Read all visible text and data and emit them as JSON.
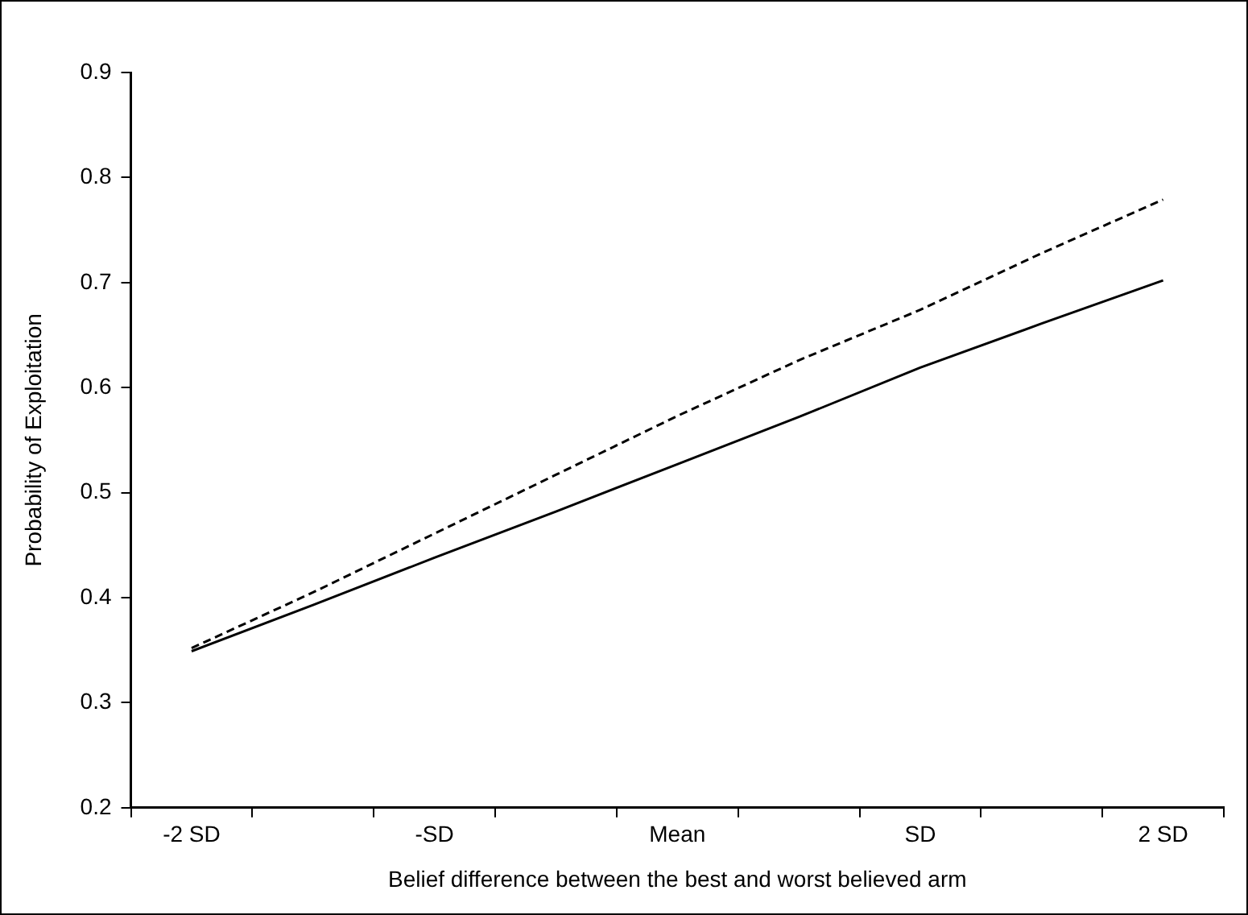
{
  "chart_data": {
    "type": "line",
    "xlabel": "Belief difference between the best and worst believed arm",
    "ylabel": "Probability of Exploitation",
    "categories": [
      "-2 SD",
      null,
      "-SD",
      null,
      "Mean",
      null,
      "SD",
      null,
      "2 SD"
    ],
    "series": [
      {
        "color": "#000000",
        "line_style": "solid",
        "values": [
          0.349,
          0.393,
          0.438,
          0.482,
          0.527,
          0.572,
          0.619,
          0.661,
          0.702
        ]
      },
      {
        "color": "#000000",
        "line_style": "dashed",
        "values": [
          0.352,
          0.405,
          0.461,
          0.517,
          0.573,
          0.626,
          0.674,
          0.728,
          0.779
        ]
      }
    ],
    "ylim": [
      0.2,
      0.9
    ],
    "yticks": [
      0.2,
      0.3,
      0.4,
      0.5,
      0.6,
      0.7,
      0.8,
      0.9
    ],
    "grid": false,
    "legend": false,
    "marker": "none"
  }
}
